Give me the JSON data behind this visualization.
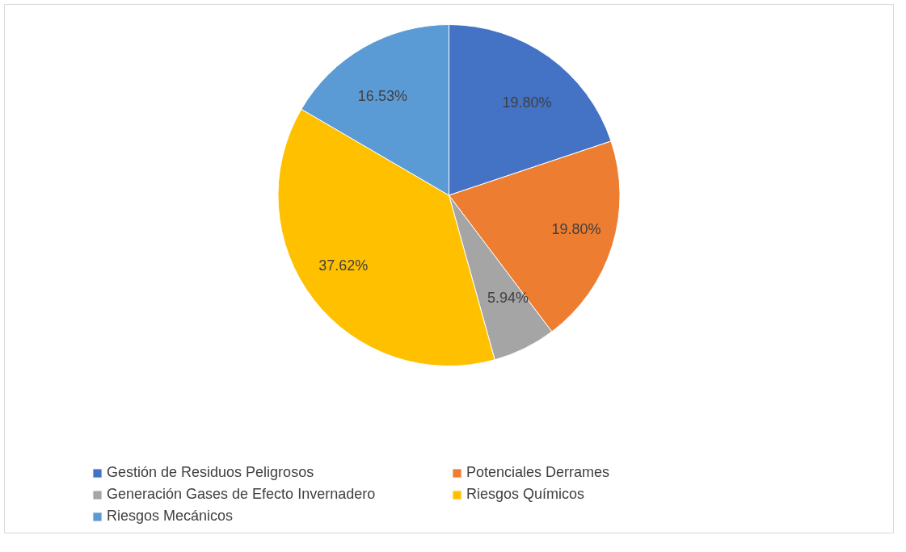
{
  "chart_data": {
    "type": "pie",
    "categories": [
      "Gestión de Residuos Peligrosos",
      "Potenciales Derrames",
      "Generación Gases de Efecto Invernadero",
      "Riesgos Químicos",
      "Riesgos Mecánicos"
    ],
    "values": [
      19.8,
      19.8,
      5.94,
      37.62,
      16.53
    ],
    "colors": [
      "#4472c4",
      "#ed7d31",
      "#a5a5a5",
      "#ffc000",
      "#5b9bd5"
    ],
    "value_labels": [
      "19.80%",
      "19.80%",
      "5.94%",
      "37.62%",
      "16.53%"
    ],
    "legend": "bottom"
  }
}
